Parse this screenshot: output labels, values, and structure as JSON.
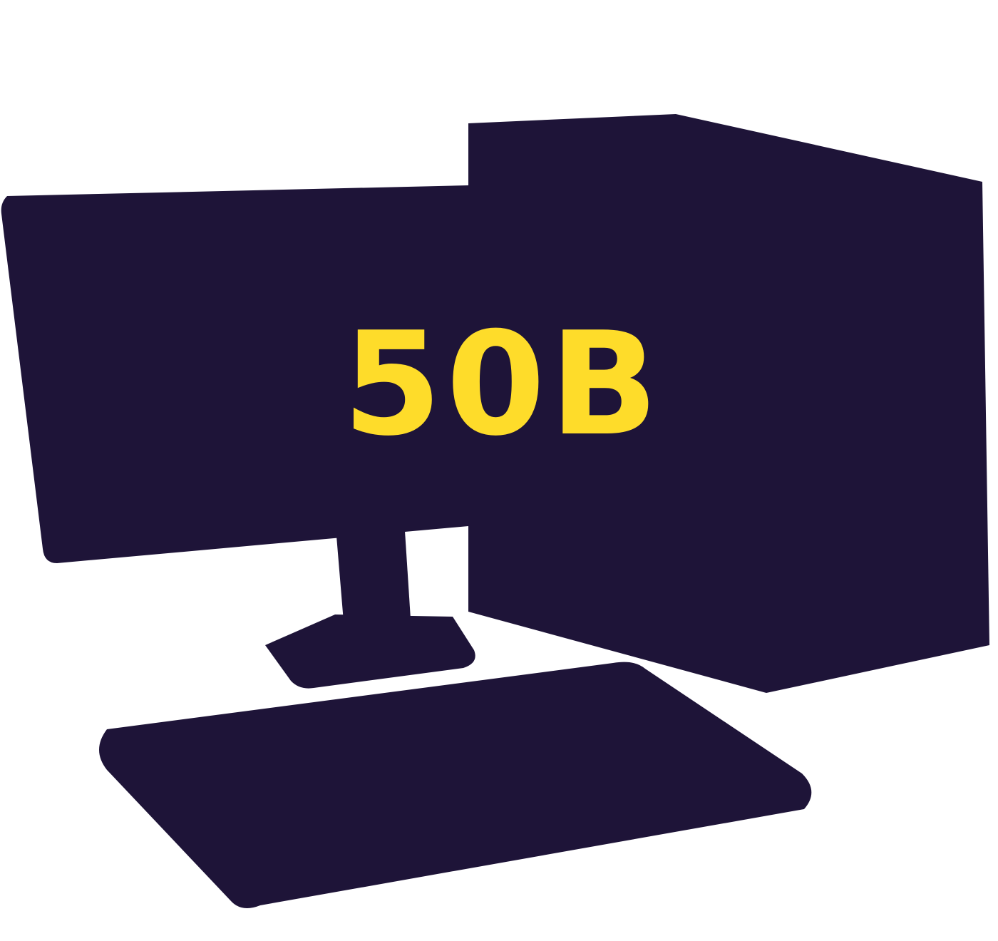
{
  "label": "50B",
  "colors": {
    "background": "#ffffff",
    "silhouette": "#1e1438",
    "label": "#fedc2a"
  },
  "icons": [
    "desktop-computer-icon",
    "monitor-icon",
    "tower-case-icon",
    "keyboard-icon"
  ]
}
